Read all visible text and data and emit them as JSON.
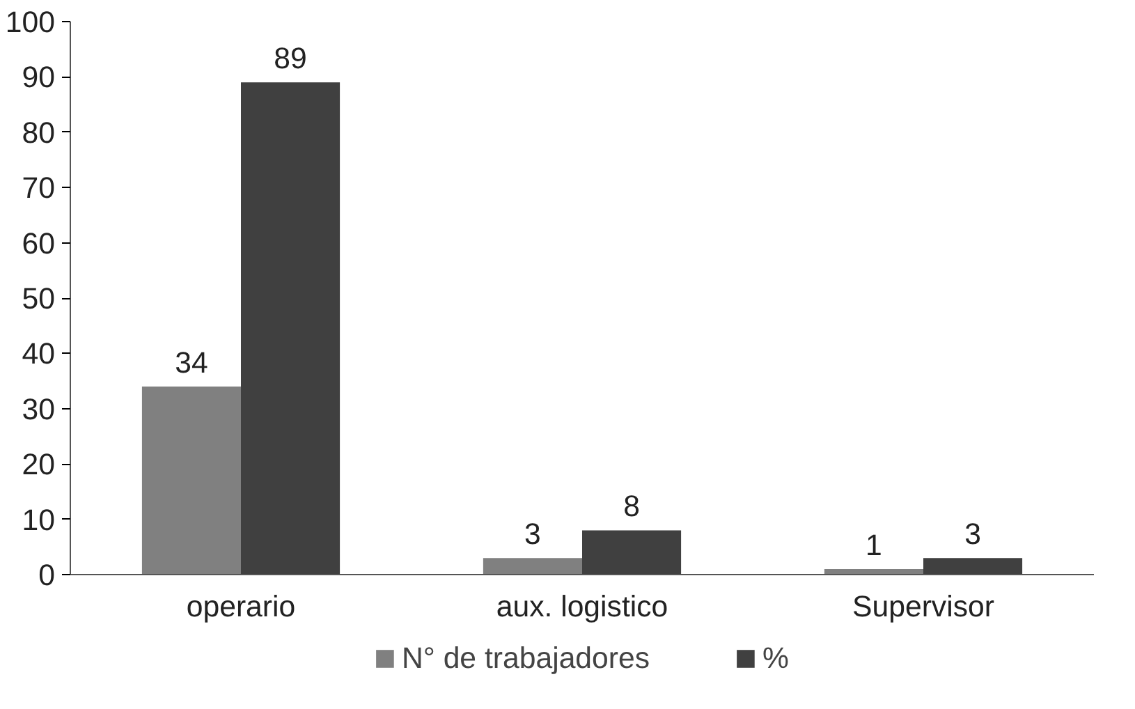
{
  "chart_data": {
    "type": "bar",
    "categories": [
      "operario",
      "aux. logistico",
      "Supervisor"
    ],
    "series": [
      {
        "name": "N° de trabajadores",
        "color": "#808080",
        "values": [
          34,
          3,
          1
        ]
      },
      {
        "name": "%",
        "color": "#404040",
        "values": [
          89,
          8,
          3
        ]
      }
    ],
    "ylim": [
      0,
      100
    ],
    "yticks": [
      0,
      10,
      20,
      30,
      40,
      50,
      60,
      70,
      80,
      90,
      100
    ],
    "grid": false,
    "legend": "bottom",
    "data_labels": true
  }
}
